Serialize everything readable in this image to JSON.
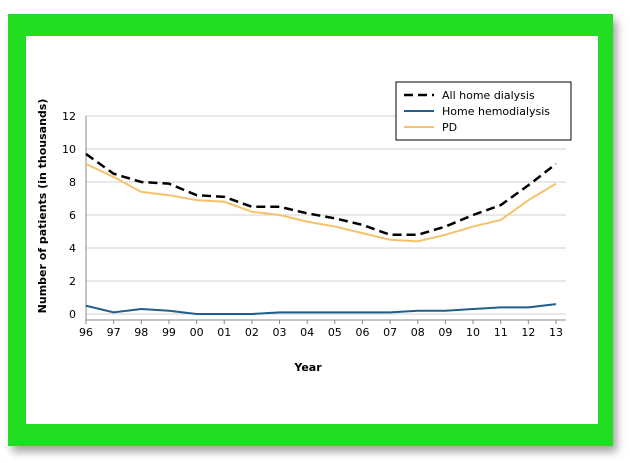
{
  "chart_data": {
    "type": "line",
    "x_label": "Year",
    "y_label": "Number of patients (in thousands)",
    "categories": [
      "96",
      "97",
      "98",
      "99",
      "00",
      "01",
      "02",
      "03",
      "04",
      "05",
      "06",
      "07",
      "08",
      "09",
      "10",
      "11",
      "12",
      "13"
    ],
    "series": [
      {
        "name": "All home dialysis",
        "color": "#000000",
        "dashed": true,
        "values": [
          9.7,
          8.5,
          8.0,
          7.9,
          7.2,
          7.1,
          6.5,
          6.5,
          6.1,
          5.8,
          5.4,
          4.8,
          4.8,
          5.3,
          6.0,
          6.6,
          7.8,
          9.1
        ]
      },
      {
        "name": "Home hemodialysis",
        "color": "#1f5f8b",
        "dashed": false,
        "values": [
          0.5,
          0.1,
          0.3,
          0.2,
          0.0,
          0.0,
          0.0,
          0.1,
          0.1,
          0.1,
          0.1,
          0.1,
          0.2,
          0.2,
          0.3,
          0.4,
          0.4,
          0.6
        ]
      },
      {
        "name": "PD",
        "color": "#f5c26b",
        "dashed": false,
        "values": [
          9.1,
          8.3,
          7.4,
          7.2,
          6.9,
          6.8,
          6.2,
          6.0,
          5.6,
          5.3,
          4.9,
          4.5,
          4.4,
          4.8,
          5.3,
          5.7,
          6.9,
          7.9
        ]
      }
    ],
    "ylim": [
      0,
      12
    ],
    "yticks": [
      0,
      2,
      4,
      6,
      8,
      10,
      12
    ],
    "grid": true,
    "legend": "top-right"
  }
}
